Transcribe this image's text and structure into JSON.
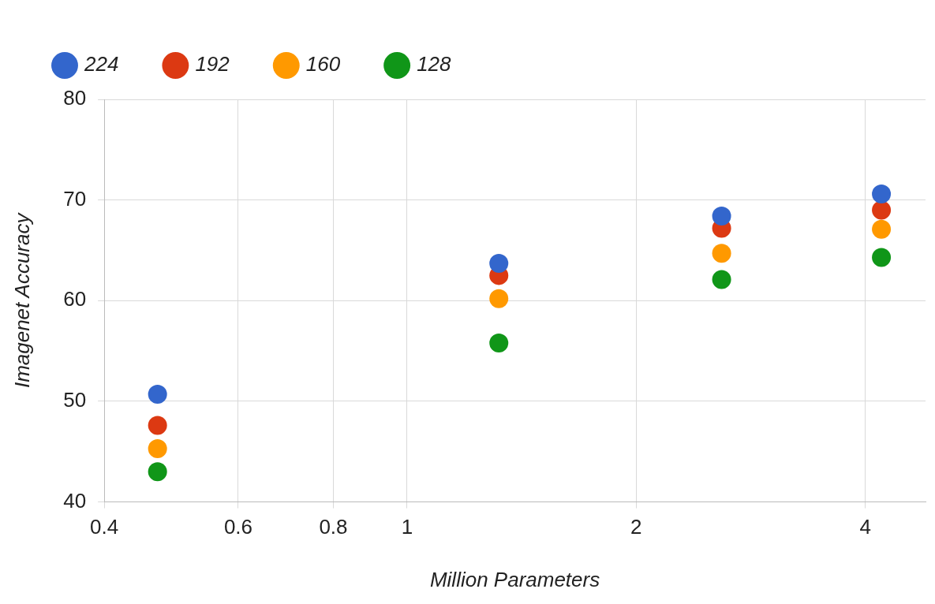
{
  "chart_data": {
    "type": "scatter",
    "xlabel": "Million Parameters",
    "ylabel": "Imagenet Accuracy",
    "x": [
      0.47,
      1.32,
      2.59,
      4.2
    ],
    "series": [
      {
        "name": "224",
        "color": "#3366cc",
        "values": [
          50.7,
          63.7,
          68.4,
          70.6
        ]
      },
      {
        "name": "192",
        "color": "#dc3912",
        "values": [
          47.6,
          62.5,
          67.2,
          69.0
        ]
      },
      {
        "name": "160",
        "color": "#ff9900",
        "values": [
          45.3,
          60.2,
          64.7,
          67.1
        ]
      },
      {
        "name": "128",
        "color": "#109618",
        "values": [
          43.0,
          55.8,
          62.1,
          64.3
        ]
      }
    ],
    "log": "x",
    "xlim": [
      0.4,
      4.8
    ],
    "xticks": [
      0.4,
      0.6,
      0.8,
      1,
      2,
      4
    ],
    "ylim": [
      40,
      80
    ],
    "yticks": [
      40,
      50,
      60,
      70,
      80
    ],
    "grid": true,
    "legend": "top",
    "marker": "circle"
  }
}
